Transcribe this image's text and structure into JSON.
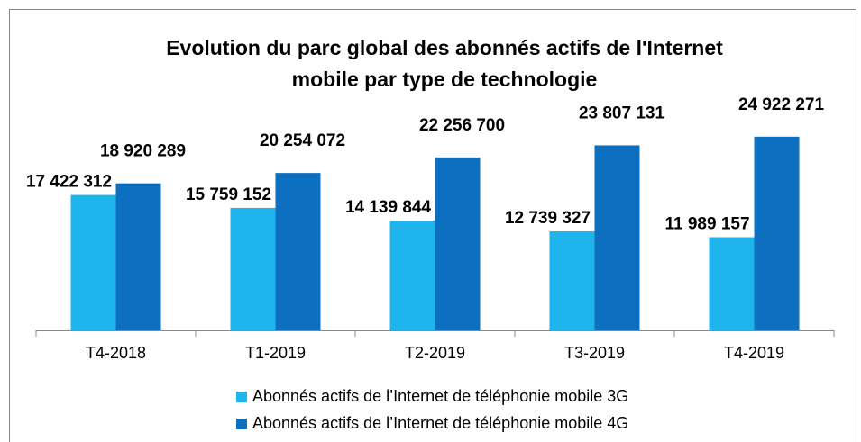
{
  "chart_data": {
    "type": "bar",
    "title": "Evolution du parc global des abonnés actifs de l'Internet mobile par type de technologie",
    "categories": [
      "T4-2018",
      "T1-2019",
      "T2-2019",
      "T3-2019",
      "T4-2019"
    ],
    "series": [
      {
        "name": "Abonnés actifs de l’Internet de téléphonie mobile 3G",
        "color": "#1fb5ec",
        "values": [
          17422312,
          15759152,
          14139844,
          12739327,
          11989157
        ],
        "value_labels": [
          "17 422 312",
          "15 759 152",
          "14 139 844",
          "12 739 327",
          "11 989 157"
        ]
      },
      {
        "name": "Abonnés actifs de l’Internet de téléphonie mobile 4G",
        "color": "#0d6fc0",
        "values": [
          18920289,
          20254072,
          22256700,
          23807131,
          24922271
        ],
        "value_labels": [
          "18 920 289",
          "20 254 072",
          "22 256 700",
          "23 807 131",
          "24 922 271"
        ]
      }
    ],
    "ylim": [
      0,
      30000000
    ],
    "legend": "bottom"
  }
}
